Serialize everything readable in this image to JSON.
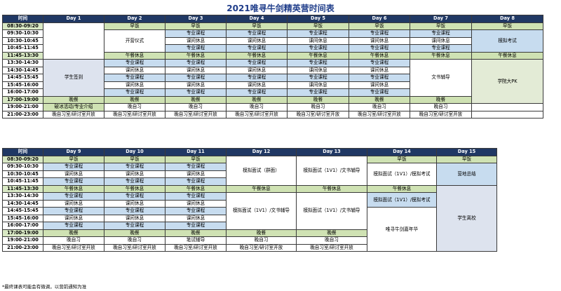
{
  "title": "2021唯寻牛剑精英营时间表",
  "header_time": "时间",
  "week1": {
    "days": [
      "Day 1",
      "Day 2",
      "Day 3",
      "Day 4",
      "Day 5",
      "Day 6",
      "Day 7",
      "Day 8"
    ],
    "times": [
      "08:30-09:20",
      "09:30-10:30",
      "10:30-10:45",
      "10:45-11:45",
      "11:45-13:30",
      "13:30-14:30",
      "14:30-14:45",
      "14:45-15:45",
      "15:45-16:00",
      "16:00-17:00",
      "17:00-19:00",
      "19:00-21:00",
      "21:00-23:00"
    ],
    "cells": {
      "breakfast": "早饭",
      "course": "专业课程",
      "break": "课间休息",
      "lunch": "午餐休息",
      "dinner": "晚餐",
      "self_study": "晚自习",
      "self_study_open": "晚自习室/研讨室开放",
      "opening": "开营仪式",
      "mock_exam": "模拟考试",
      "student_checkin": "学生签到",
      "icebreak": "破冰活动/专业介绍",
      "writing": "文书辅导",
      "college_pk": "学院大PK"
    }
  },
  "week2": {
    "days": [
      "Day 9",
      "Day 10",
      "Day 11",
      "Day 12",
      "Day 13",
      "Day 14",
      "Day 15"
    ],
    "times": [
      "08:30-09:20",
      "09:30-10:30",
      "10:30-10:45",
      "10:45-11:45",
      "11:45-13:30",
      "13:30-14:30",
      "14:30-14:45",
      "14:45-15:45",
      "15:45-16:00",
      "16:00-17:00",
      "17:00-19:00",
      "19:00-21:00",
      "21:00-23:00"
    ],
    "cells": {
      "mock_group": "模拟面试（群面）",
      "mock_1v1_writing": "模拟面试（1V1）/文书辅导",
      "mock_1v1_exam": "模拟面试（1V1）/模拟考试",
      "camp_summary": "营地总结",
      "student_leave": "学生离校",
      "carnival": "唯寻牛剑嘉年华",
      "writing_tutor": "笔试辅导"
    }
  },
  "footnote": "*最终课表可能会有微调，以营前通知为准"
}
